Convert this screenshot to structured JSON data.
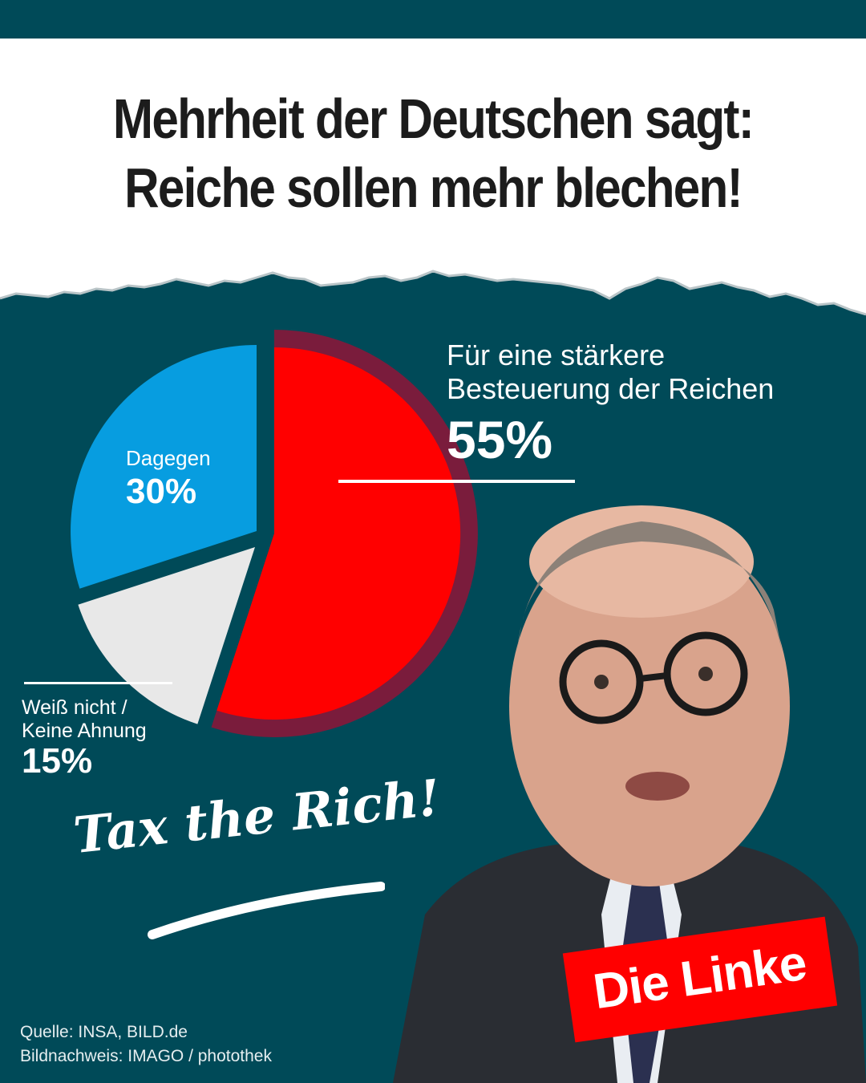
{
  "header": {
    "line1": "Mehrheit der Deutschen sagt:",
    "line2": "Reiche sollen mehr blechen!"
  },
  "chart_data": {
    "type": "pie",
    "slices": [
      {
        "label": "Für eine stärkere Besteuerung der Reichen",
        "value": 55,
        "display": "55%",
        "color": "#ff0000"
      },
      {
        "label": "Weiß nicht / Keine Ahnung",
        "value": 15,
        "display": "15%",
        "color": "#e8e8e8"
      },
      {
        "label": "Dagegen",
        "value": 30,
        "display": "30%",
        "color": "#079de0"
      }
    ]
  },
  "labels": {
    "pro_line1": "Für eine stärkere",
    "pro_line2": "Besteuerung der Reichen",
    "pro_value": "55%",
    "contra": "Dagegen",
    "contra_value": "30%",
    "unknown_line1": "Weiß nicht /",
    "unknown_line2": "Keine Ahnung",
    "unknown_value": "15%"
  },
  "slogan": "Tax the Rich!",
  "logo": "Die Linke",
  "footer": {
    "source": "Quelle: INSA, BILD.de",
    "credit": "Bildnachweis: IMAGO / photothek"
  },
  "colors": {
    "background": "#004a58",
    "accent_red": "#ff0000",
    "accent_blue": "#079de0",
    "accent_ring": "#7a1c3c"
  }
}
